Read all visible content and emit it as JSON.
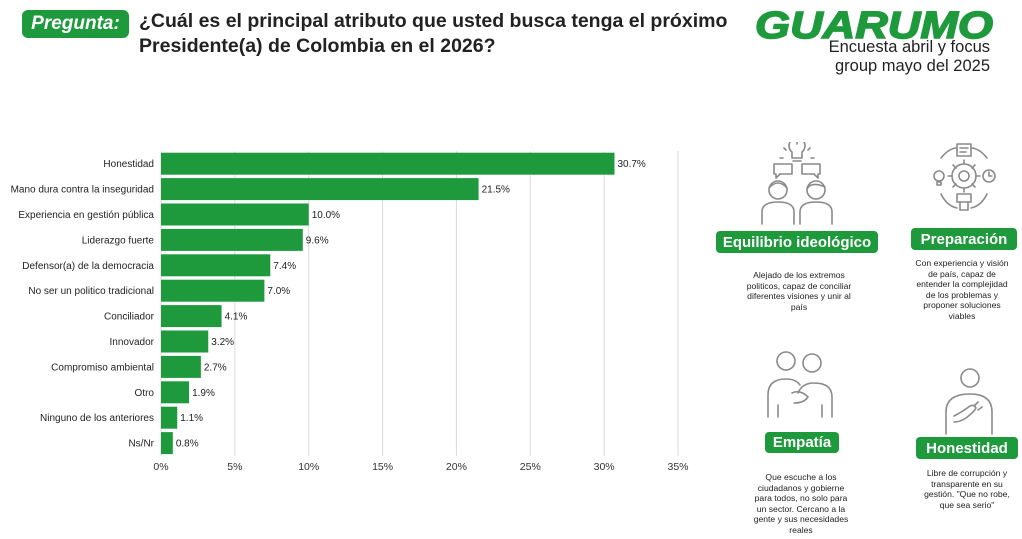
{
  "header": {
    "badge": "Pregunta:",
    "question": "¿Cuál es el principal atributo que usted busca tenga el próximo Presidente(a) de Colombia en el 2026?",
    "brand": "GUARUMO",
    "subtitle_line1": "Encuesta abril y focus",
    "subtitle_line2": "group mayo del 2025",
    "brand_color": "#1e9a3d"
  },
  "chart_data": {
    "type": "bar",
    "orientation": "horizontal",
    "categories": [
      "Honestidad",
      "Mano dura contra la inseguridad",
      "Experiencia en gestión pública",
      "Liderazgo fuerte",
      "Defensor(a) de la democracia",
      "No ser un politico tradicional",
      "Conciliador",
      "Innovador",
      "Compromiso ambiental",
      "Otro",
      "Ninguno de los anteriores",
      "Ns/Nr"
    ],
    "values": [
      30.7,
      21.5,
      10.0,
      9.6,
      7.4,
      7.0,
      4.1,
      3.2,
      2.7,
      1.9,
      1.1,
      0.8
    ],
    "value_labels": [
      "30.7%",
      "21.5%",
      "10.0%",
      "9.6%",
      "7.4%",
      "7.0%",
      "4.1%",
      "3.2%",
      "2.7%",
      "1.9%",
      "1.1%",
      "0.8%"
    ],
    "xlim": [
      0,
      35
    ],
    "xticks": [
      0,
      5,
      10,
      15,
      20,
      25,
      30,
      35
    ],
    "xtick_labels": [
      "0%",
      "5%",
      "10%",
      "15%",
      "20%",
      "25%",
      "30%",
      "35%"
    ],
    "bar_color": "#1e9a3d",
    "grid": "vertical"
  },
  "attributes": [
    {
      "title": "Equilibrio ideológico",
      "icon": "people-lightbulb-icon",
      "desc_lines": [
        "Alejado de los extremos",
        "politicos, capaz de conciliar",
        "diferentes visiones y unir al",
        "país"
      ]
    },
    {
      "title": "Preparación",
      "icon": "gear-ideas-icon",
      "desc_lines": [
        "Con experiencia y visión",
        "de país, capaz de",
        "entender la complejidad",
        "de los problemas y",
        "proponer soluciones",
        "viables"
      ]
    },
    {
      "title": "Empatía",
      "icon": "people-embrace-icon",
      "desc_lines": [
        "Que escuche a los",
        "ciudadanos y gobierne",
        "para todos, no solo para",
        "un sector. Cercano a la",
        "gente y sus necesidades",
        "reales"
      ]
    },
    {
      "title": "Honestidad",
      "icon": "hand-on-heart-icon",
      "desc_lines": [
        "Libre de corrupción y",
        "transparente en su",
        "gestión. \"Que no robe,",
        "que sea serio\""
      ]
    }
  ]
}
